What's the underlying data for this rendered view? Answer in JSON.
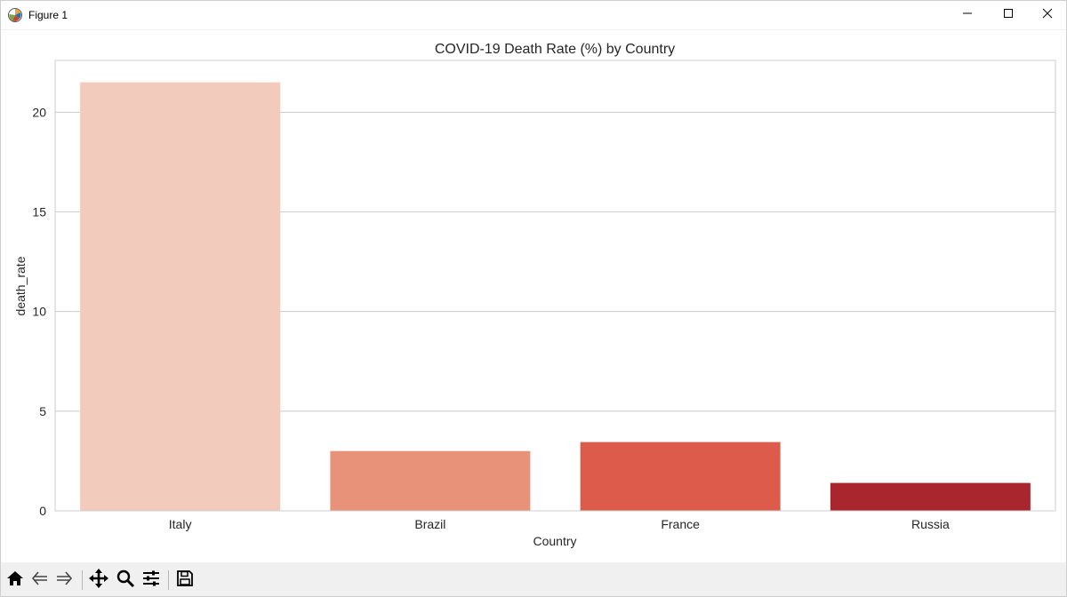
{
  "window": {
    "title": "Figure 1",
    "icon": "matplotlib-figure-icon",
    "controls": [
      "minimize-icon",
      "maximize-icon",
      "close-icon"
    ]
  },
  "toolbar": {
    "tools": [
      "home-icon",
      "back-arrow-icon",
      "forward-arrow-icon",
      "pan-move-icon",
      "zoom-magnifier-icon",
      "configure-subplots-icon",
      "save-floppy-icon"
    ]
  },
  "chart_data": {
    "type": "bar",
    "title": "COVID-19 Death Rate (%) by Country",
    "xlabel": "Country",
    "ylabel": "death_rate",
    "categories": [
      "Italy",
      "Brazil",
      "France",
      "Russia"
    ],
    "values": [
      21.5,
      3.0,
      3.45,
      1.4
    ],
    "colors": [
      "#f2cbbd",
      "#e9927a",
      "#dc5b4b",
      "#aa262f"
    ],
    "ylim": [
      0,
      22.6
    ],
    "yticks": [
      0,
      5,
      10,
      15,
      20
    ],
    "grid": "horizontal",
    "legend": "none"
  }
}
